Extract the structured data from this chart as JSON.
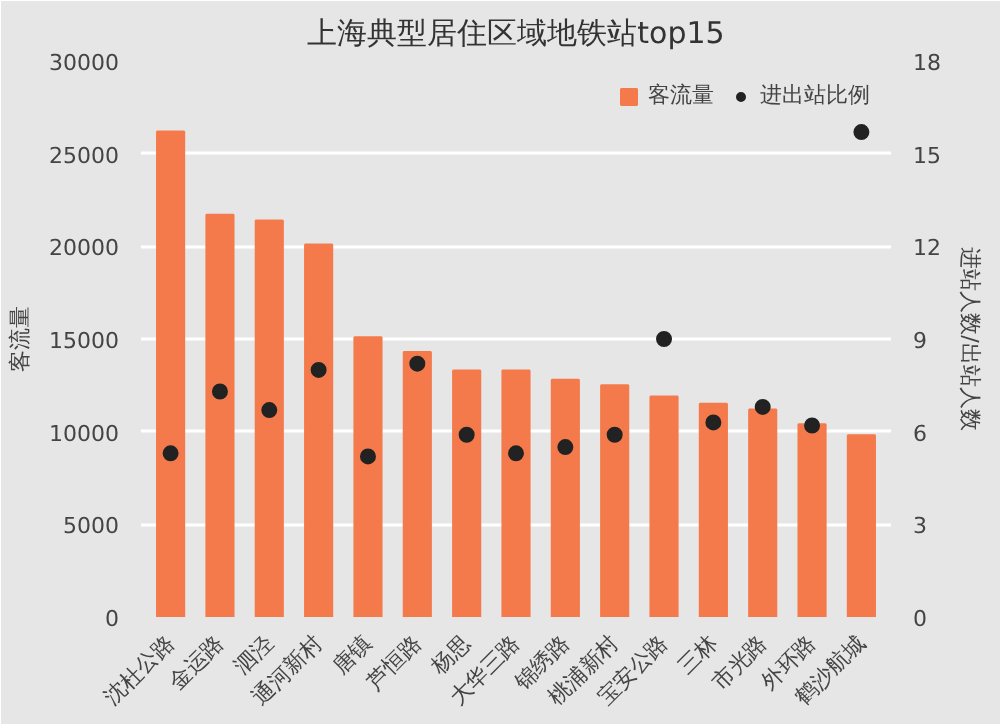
{
  "chart_data": {
    "type": "bar",
    "title": "上海典型居住区域地铁站top15",
    "categories": [
      "沈杜公路",
      "金运路",
      "泗泾",
      "通河新村",
      "唐镇",
      "芦恒路",
      "杨思",
      "大华三路",
      "锦绣路",
      "桃浦新村",
      "宝安公路",
      "三林",
      "市光路",
      "外环路",
      "鹤沙航城"
    ],
    "series": [
      {
        "name": "客流量",
        "color": "#f47a4c",
        "values": [
          26200,
          21700,
          21400,
          20100,
          15100,
          14300,
          13300,
          13300,
          12800,
          12500,
          11900,
          11500,
          11200,
          10400,
          9800
        ]
      },
      {
        "name": "进出站比例",
        "type": "scatter",
        "axis": "y2",
        "color": "#222222",
        "values": [
          5.3,
          7.3,
          6.7,
          8.0,
          5.2,
          8.2,
          5.9,
          5.3,
          5.5,
          5.9,
          9.0,
          6.3,
          6.8,
          6.2,
          15.7
        ]
      }
    ],
    "ylabel": "客流量",
    "y2label": "进站人数/出站人数",
    "ylim": [
      0,
      30000
    ],
    "yticks": [
      0,
      5000,
      10000,
      15000,
      20000,
      25000,
      30000
    ],
    "y2lim": [
      0,
      18
    ],
    "y2ticks": [
      0,
      3,
      6,
      9,
      12,
      15,
      18
    ],
    "grid": "y",
    "legend": "top right",
    "marker": "circle"
  }
}
